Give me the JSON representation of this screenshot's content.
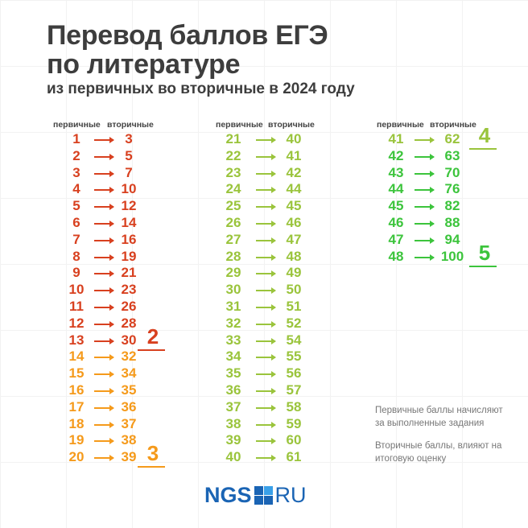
{
  "title_line1": "Перевод баллов ЕГЭ",
  "title_line2": "по литературе",
  "subtitle": "из первичных во вторичные в 2024 году",
  "header_primary": "первичные",
  "header_secondary": "вторичные",
  "colors": {
    "red": "#d8401f",
    "orange": "#f59a1b",
    "lightgreen": "#9ac43c",
    "green": "#3cc43c",
    "brand": "#1a64b4"
  },
  "columns": [
    {
      "rows": [
        [
          "1",
          "3",
          "red"
        ],
        [
          "2",
          "5",
          "red"
        ],
        [
          "3",
          "7",
          "red"
        ],
        [
          "4",
          "10",
          "red"
        ],
        [
          "5",
          "12",
          "red"
        ],
        [
          "6",
          "14",
          "red"
        ],
        [
          "7",
          "16",
          "red"
        ],
        [
          "8",
          "19",
          "red"
        ],
        [
          "9",
          "21",
          "red"
        ],
        [
          "10",
          "23",
          "red"
        ],
        [
          "11",
          "26",
          "red"
        ],
        [
          "12",
          "28",
          "red"
        ],
        [
          "13",
          "30",
          "red"
        ],
        [
          "14",
          "32",
          "orange"
        ],
        [
          "15",
          "34",
          "orange"
        ],
        [
          "16",
          "35",
          "orange"
        ],
        [
          "17",
          "36",
          "orange"
        ],
        [
          "18",
          "37",
          "orange"
        ],
        [
          "19",
          "38",
          "orange"
        ],
        [
          "20",
          "39",
          "orange"
        ]
      ]
    },
    {
      "rows": [
        [
          "21",
          "40",
          "lightgreen"
        ],
        [
          "22",
          "41",
          "lightgreen"
        ],
        [
          "23",
          "42",
          "lightgreen"
        ],
        [
          "24",
          "44",
          "lightgreen"
        ],
        [
          "25",
          "45",
          "lightgreen"
        ],
        [
          "26",
          "46",
          "lightgreen"
        ],
        [
          "27",
          "47",
          "lightgreen"
        ],
        [
          "28",
          "48",
          "lightgreen"
        ],
        [
          "29",
          "49",
          "lightgreen"
        ],
        [
          "30",
          "50",
          "lightgreen"
        ],
        [
          "31",
          "51",
          "lightgreen"
        ],
        [
          "32",
          "52",
          "lightgreen"
        ],
        [
          "33",
          "54",
          "lightgreen"
        ],
        [
          "34",
          "55",
          "lightgreen"
        ],
        [
          "35",
          "56",
          "lightgreen"
        ],
        [
          "36",
          "57",
          "lightgreen"
        ],
        [
          "37",
          "58",
          "lightgreen"
        ],
        [
          "38",
          "59",
          "lightgreen"
        ],
        [
          "39",
          "60",
          "lightgreen"
        ],
        [
          "40",
          "61",
          "lightgreen"
        ]
      ]
    },
    {
      "rows": [
        [
          "41",
          "62",
          "lightgreen"
        ],
        [
          "42",
          "63",
          "green"
        ],
        [
          "43",
          "70",
          "green"
        ],
        [
          "44",
          "76",
          "green"
        ],
        [
          "45",
          "82",
          "green"
        ],
        [
          "46",
          "88",
          "green"
        ],
        [
          "47",
          "94",
          "green"
        ],
        [
          "48",
          "100",
          "green"
        ]
      ]
    }
  ],
  "grades": [
    {
      "label": "2",
      "column": 0,
      "row": 12,
      "color": "red"
    },
    {
      "label": "3",
      "column": 0,
      "row": 19,
      "color": "orange"
    },
    {
      "label": "4",
      "column": 2,
      "row": 0,
      "color": "lightgreen"
    },
    {
      "label": "5",
      "column": 2,
      "row": 7,
      "color": "green"
    }
  ],
  "note1": "Первичные баллы начисляют за выполненные задания",
  "note2": "Вторичные баллы, влияют на итоговую оценку",
  "logo": {
    "name": "NGS",
    "domain": "RU"
  }
}
